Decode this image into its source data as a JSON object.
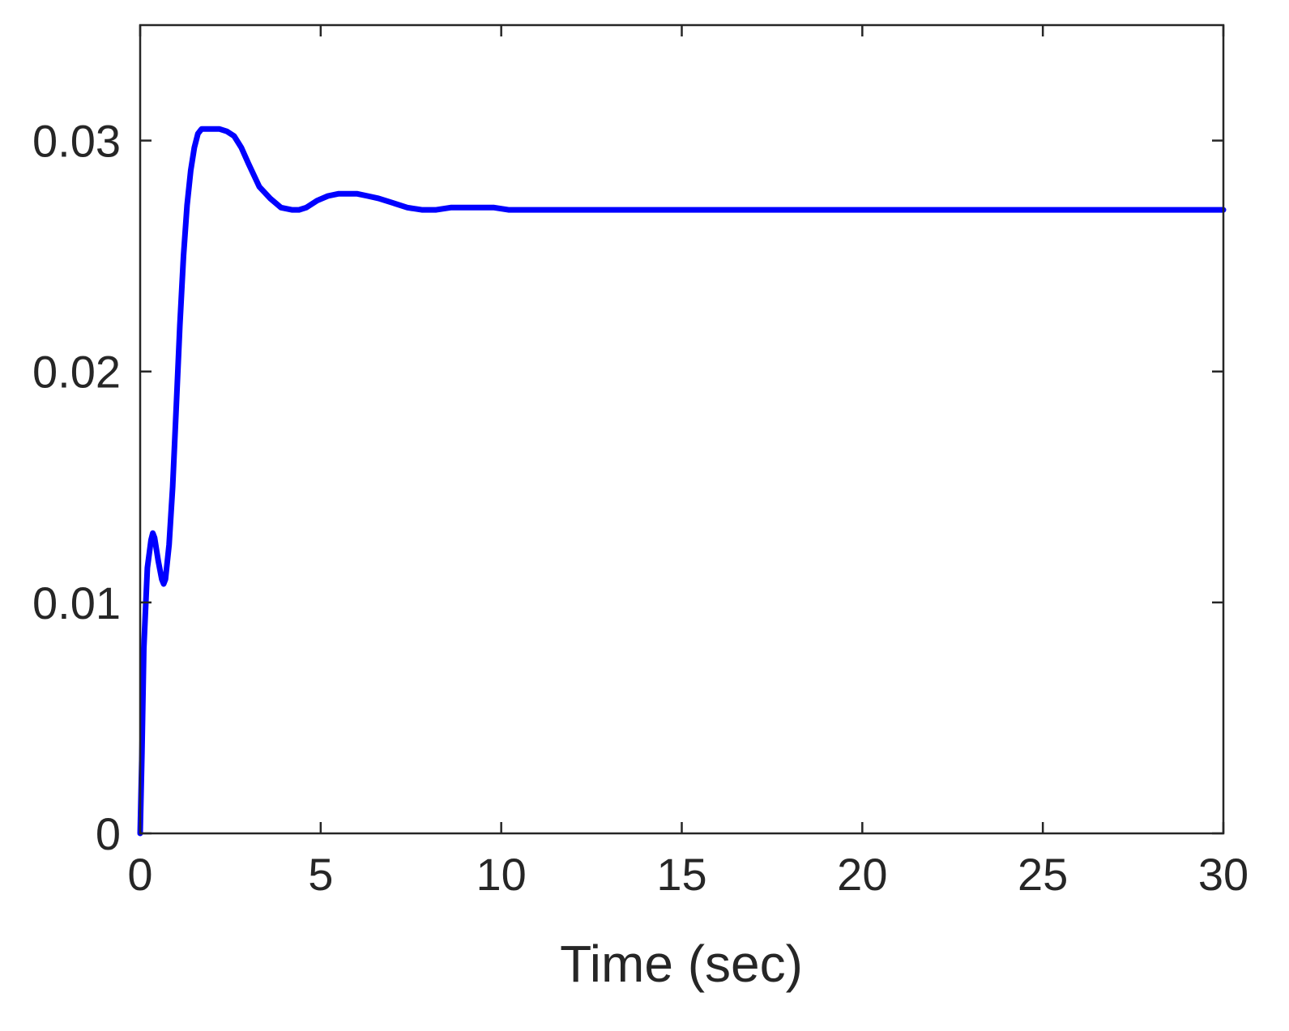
{
  "chart_data": {
    "type": "line",
    "title": "",
    "xlabel": "Time (sec)",
    "ylabel": "",
    "xlim": [
      0,
      30
    ],
    "ylim": [
      0,
      0.035
    ],
    "xticks": [
      0,
      5,
      10,
      15,
      20,
      25,
      30
    ],
    "xtick_labels": [
      "0",
      "5",
      "10",
      "15",
      "20",
      "25",
      "30"
    ],
    "yticks": [
      0,
      0.01,
      0.02,
      0.03
    ],
    "ytick_labels": [
      "0",
      "0.01",
      "0.02",
      "0.03"
    ],
    "grid": false,
    "colors": {
      "line": "#0000ff",
      "axes": "#262626",
      "background": "#ffffff"
    },
    "series": [
      {
        "x": [
          0,
          0.05,
          0.1,
          0.2,
          0.3,
          0.35,
          0.4,
          0.5,
          0.6,
          0.65,
          0.7,
          0.8,
          0.9,
          1.0,
          1.1,
          1.2,
          1.3,
          1.4,
          1.5,
          1.6,
          1.7,
          1.8,
          1.9,
          2.0,
          2.1,
          2.2,
          2.4,
          2.6,
          2.8,
          3.0,
          3.3,
          3.6,
          3.9,
          4.2,
          4.4,
          4.6,
          4.9,
          5.2,
          5.5,
          5.8,
          6.0,
          6.3,
          6.6,
          7.0,
          7.4,
          7.8,
          8.2,
          8.6,
          9.0,
          9.4,
          9.8,
          10.2,
          10.6,
          11.0,
          12,
          13,
          14,
          15,
          17,
          20,
          25,
          30
        ],
        "y": [
          0,
          0.0035,
          0.008,
          0.0115,
          0.0127,
          0.013,
          0.0128,
          0.0118,
          0.011,
          0.0108,
          0.011,
          0.0125,
          0.015,
          0.0185,
          0.022,
          0.025,
          0.0272,
          0.0287,
          0.0297,
          0.0303,
          0.0305,
          0.0305,
          0.0305,
          0.0305,
          0.0305,
          0.0305,
          0.0304,
          0.0302,
          0.0297,
          0.029,
          0.028,
          0.0275,
          0.0271,
          0.027,
          0.027,
          0.0271,
          0.0274,
          0.0276,
          0.0277,
          0.0277,
          0.0277,
          0.0276,
          0.0275,
          0.0273,
          0.0271,
          0.027,
          0.027,
          0.0271,
          0.0271,
          0.0271,
          0.0271,
          0.027,
          0.027,
          0.027,
          0.027,
          0.027,
          0.027,
          0.027,
          0.027,
          0.027,
          0.027,
          0.027
        ]
      }
    ]
  }
}
